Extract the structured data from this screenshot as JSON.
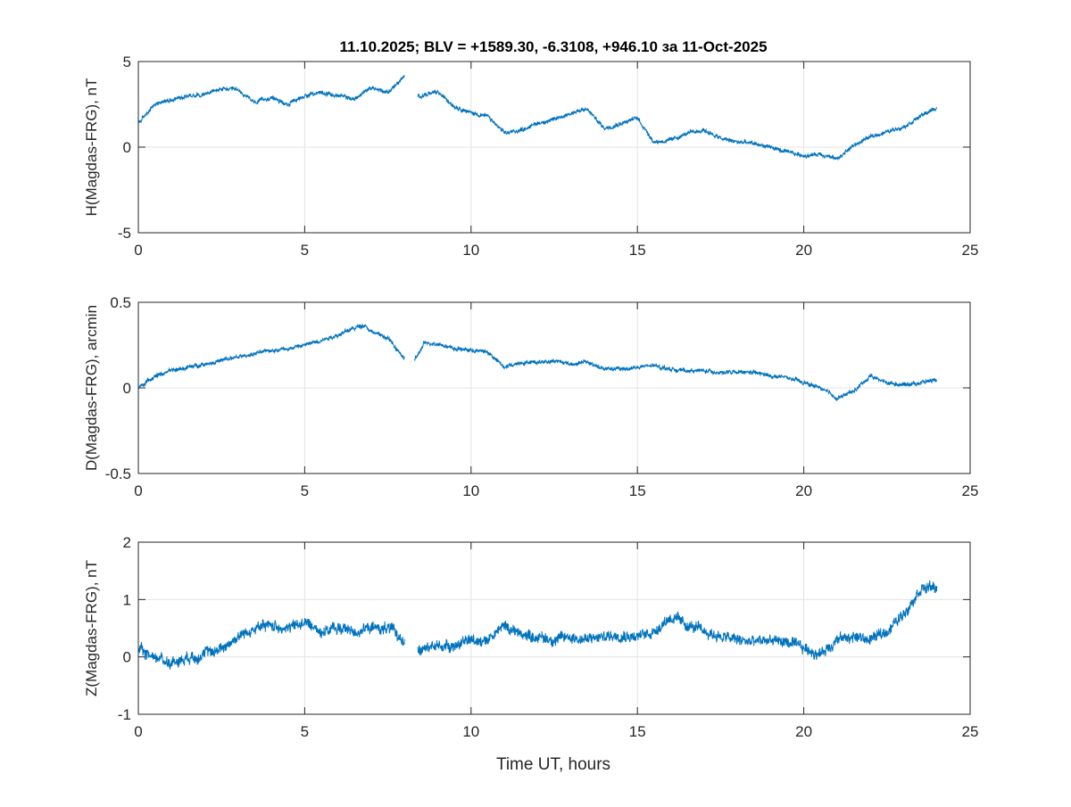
{
  "figure": {
    "title": "11.10.2025;   BLV = +1589.30,   -6.3108,  +946.10 за 11-Oct-2025",
    "xlabel": "Time UT, hours"
  },
  "chart_data": [
    {
      "type": "line",
      "ylabel": "H(Magdas-FRG), nT",
      "xlim": [
        0,
        25
      ],
      "ylim": [
        -5,
        5
      ],
      "xticks": [
        "0",
        "5",
        "10",
        "15",
        "20",
        "25"
      ],
      "yticks": [
        "5",
        "0",
        "-5"
      ],
      "grid": true,
      "color": "#0072BD",
      "noise": 0.12,
      "series": [
        {
          "x": [
            0,
            0.5,
            1,
            1.5,
            2,
            2.5,
            3,
            3.5,
            4,
            4.5,
            5,
            5.5,
            6,
            6.5,
            7,
            7.5,
            8
          ],
          "values": [
            1.4,
            2.5,
            2.8,
            3.0,
            3.1,
            3.4,
            3.3,
            2.6,
            2.9,
            2.5,
            3.0,
            3.2,
            3.0,
            2.8,
            3.5,
            3.2,
            4.1
          ]
        },
        {
          "x": [
            8.4,
            9,
            9.5,
            10,
            10.5,
            11,
            11.5,
            12,
            12.5,
            13,
            13.5,
            14,
            14.5,
            15,
            15.5,
            16,
            16.5,
            17,
            17.5,
            18,
            18.5,
            19,
            19.5,
            20,
            20.5,
            21,
            21.5,
            22,
            22.5,
            23,
            23.5,
            24
          ],
          "values": [
            3.0,
            3.2,
            2.4,
            2.0,
            1.8,
            0.8,
            1.0,
            1.4,
            1.6,
            2.0,
            2.2,
            1.1,
            1.4,
            1.7,
            0.3,
            0.4,
            0.8,
            1.0,
            0.5,
            0.3,
            0.2,
            0.0,
            -0.3,
            -0.5,
            -0.4,
            -0.7,
            0.1,
            0.6,
            0.9,
            1.2,
            1.8,
            2.3
          ]
        }
      ]
    },
    {
      "type": "line",
      "ylabel": "D(Magdas-FRG), arcmin",
      "xlim": [
        0,
        25
      ],
      "ylim": [
        -0.5,
        0.5
      ],
      "xticks": [
        "0",
        "5",
        "10",
        "15",
        "20",
        "25"
      ],
      "yticks": [
        "0.5",
        "0",
        "-0.5"
      ],
      "grid": true,
      "color": "#0072BD",
      "noise": 0.012,
      "series": [
        {
          "x": [
            0,
            0.5,
            1,
            1.5,
            2,
            2.5,
            3,
            3.5,
            4,
            4.5,
            5,
            5.5,
            6,
            6.5,
            6.8,
            7,
            7.5,
            8
          ],
          "values": [
            0.0,
            0.07,
            0.1,
            0.12,
            0.14,
            0.16,
            0.18,
            0.2,
            0.22,
            0.23,
            0.25,
            0.28,
            0.31,
            0.35,
            0.37,
            0.33,
            0.29,
            0.17
          ]
        },
        {
          "x": [
            8.3,
            8.6,
            9,
            9.5,
            10,
            10.5,
            11,
            11.5,
            12,
            12.5,
            13,
            13.5,
            14,
            14.5,
            15,
            15.5,
            16,
            16.5,
            17,
            17.5,
            18,
            18.5,
            19,
            19.5,
            20,
            20.5,
            21,
            21.5,
            22,
            22.5,
            23,
            23.5,
            24
          ],
          "values": [
            0.16,
            0.26,
            0.26,
            0.23,
            0.22,
            0.21,
            0.12,
            0.15,
            0.15,
            0.16,
            0.14,
            0.15,
            0.11,
            0.11,
            0.12,
            0.13,
            0.11,
            0.1,
            0.1,
            0.09,
            0.09,
            0.09,
            0.07,
            0.06,
            0.03,
            0.0,
            -0.06,
            -0.02,
            0.07,
            0.03,
            0.02,
            0.03,
            0.05
          ]
        }
      ]
    },
    {
      "type": "line",
      "ylabel": "Z(Magdas-FRG), nT",
      "xlim": [
        0,
        25
      ],
      "ylim": [
        -1,
        2
      ],
      "xticks": [
        "0",
        "5",
        "10",
        "15",
        "20",
        "25"
      ],
      "yticks": [
        "2",
        "1",
        "0",
        "-1"
      ],
      "grid": true,
      "color": "#0072BD",
      "noise": 0.1,
      "series": [
        {
          "x": [
            0,
            0.5,
            1,
            1.5,
            2,
            2.5,
            3,
            3.5,
            4,
            4.5,
            5,
            5.5,
            6,
            6.5,
            7,
            7.5,
            8
          ],
          "values": [
            0.1,
            0.0,
            -0.1,
            0.0,
            0.05,
            0.15,
            0.35,
            0.5,
            0.55,
            0.5,
            0.6,
            0.45,
            0.5,
            0.45,
            0.5,
            0.5,
            0.3
          ]
        },
        {
          "x": [
            8.4,
            9,
            9.5,
            10,
            10.5,
            11,
            11.5,
            12,
            12.5,
            13,
            13.5,
            14,
            14.5,
            15,
            15.5,
            16,
            16.5,
            17,
            17.5,
            18,
            18.5,
            19,
            19.5,
            20,
            20.5,
            21,
            21.5,
            22,
            22.5,
            23,
            23.5,
            24
          ],
          "values": [
            0.1,
            0.2,
            0.2,
            0.3,
            0.3,
            0.55,
            0.4,
            0.35,
            0.3,
            0.35,
            0.3,
            0.35,
            0.4,
            0.35,
            0.45,
            0.7,
            0.55,
            0.45,
            0.35,
            0.3,
            0.25,
            0.3,
            0.25,
            0.15,
            0.05,
            0.3,
            0.35,
            0.3,
            0.45,
            0.75,
            1.2,
            1.2
          ]
        }
      ]
    }
  ]
}
